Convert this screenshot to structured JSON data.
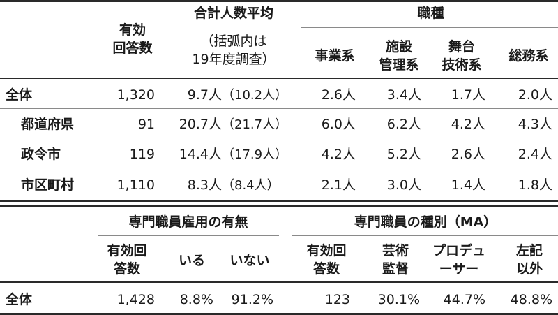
{
  "table1": {
    "headers": {
      "respondents": [
        "有効",
        "回答数"
      ],
      "avg_total": "合計人数平均",
      "avg_note": [
        "（括弧内は",
        "19年度調査）"
      ],
      "job_type": "職種",
      "jobs": [
        [
          "事業系"
        ],
        [
          "施設",
          "管理系"
        ],
        [
          "舞台",
          "技術系"
        ],
        [
          "総務系"
        ]
      ]
    },
    "rows": [
      {
        "label": "全体",
        "n": "1,320",
        "avg": "9.7人",
        "prev": "（10.2人）",
        "jobs": [
          "2.6人",
          "3.4人",
          "1.7人",
          "2.0人"
        ]
      },
      {
        "label": "都道府県",
        "n": "91",
        "avg": "20.7人",
        "prev": "（21.7人）",
        "jobs": [
          "6.0人",
          "6.2人",
          "4.2人",
          "4.3人"
        ]
      },
      {
        "label": "政令市",
        "n": "119",
        "avg": "14.4人",
        "prev": "（17.9人）",
        "jobs": [
          "4.2人",
          "5.2人",
          "2.6人",
          "2.4人"
        ]
      },
      {
        "label": "市区町村",
        "n": "1,110",
        "avg": "8.3人",
        "prev": "（8.4人）",
        "jobs": [
          "2.1人",
          "3.0人",
          "1.4人",
          "1.8人"
        ]
      }
    ]
  },
  "table2": {
    "headers": {
      "employment": "専門職員雇用の有無",
      "types": "専門職員の種別（MA）",
      "respondents1": [
        "有効回",
        "答数"
      ],
      "yes": "いる",
      "no": "いない",
      "respondents2": [
        "有効回",
        "答数"
      ],
      "art": [
        "芸術",
        "監督"
      ],
      "producer": [
        "プロデュ",
        "ーサー"
      ],
      "other": [
        "左記",
        "以外"
      ]
    },
    "row": {
      "label": "全体",
      "n1": "1,428",
      "yes": "8.8%",
      "no": "91.2%",
      "n2": "123",
      "art": "30.1%",
      "producer": "44.7%",
      "other": "48.8%"
    }
  }
}
